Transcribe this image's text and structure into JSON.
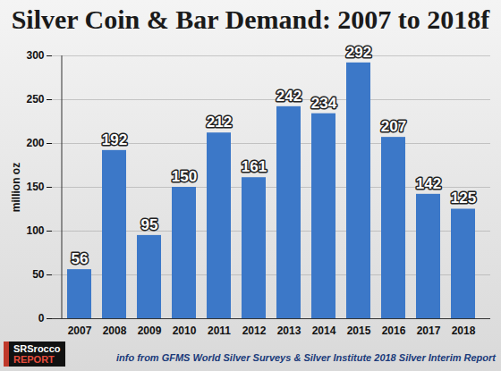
{
  "chart_data": {
    "type": "bar",
    "title": "Silver Coin & Bar Demand: 2007 to 2018f",
    "y_label": "million oz",
    "categories": [
      "2007",
      "2008",
      "2009",
      "2010",
      "2011",
      "2012",
      "2013",
      "2014",
      "2015",
      "2016",
      "2017",
      "2018"
    ],
    "values": [
      56,
      192,
      95,
      150,
      212,
      161,
      242,
      234,
      292,
      207,
      142,
      125
    ],
    "color": "#3c78c8",
    "ylim": [
      0,
      300
    ],
    "yticks": [
      0,
      50,
      100,
      150,
      200,
      250,
      300
    ],
    "grid": true,
    "data_labels": true,
    "annotations": [
      "SRSrocco",
      "REPORT",
      "info from GFMS World Silver Surveys & Silver Institute 2018 Silver Interim Report"
    ]
  }
}
